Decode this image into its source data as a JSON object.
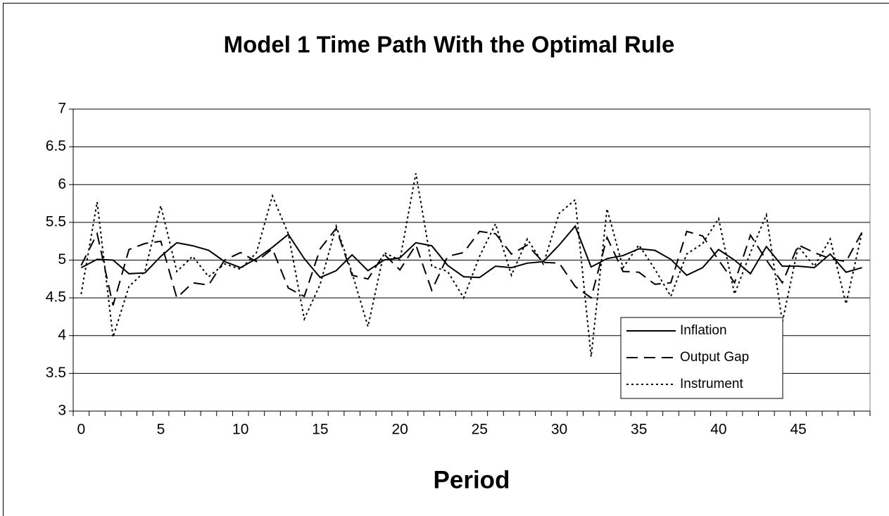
{
  "chart_data": {
    "type": "line",
    "title": "Model 1 Time Path With the Optimal Rule",
    "x_label": "Period",
    "categories": [
      0,
      null,
      null,
      null,
      null,
      5,
      null,
      null,
      null,
      null,
      10,
      null,
      null,
      null,
      null,
      15,
      null,
      null,
      null,
      null,
      20,
      null,
      null,
      null,
      null,
      25,
      null,
      null,
      null,
      null,
      30,
      null,
      null,
      null,
      null,
      35,
      null,
      null,
      null,
      null,
      40,
      null,
      null,
      null,
      null,
      45,
      null,
      null,
      null,
      null
    ],
    "ylim": [
      3,
      7
    ],
    "yticks": [
      3,
      3.5,
      4,
      4.5,
      5,
      5.5,
      6,
      6.5,
      7
    ],
    "grid": true,
    "legend": "lower right",
    "series": [
      {
        "name": "Inflation",
        "color": "#000000",
        "style": "solid",
        "values": [
          4.9,
          5.01,
          5.0,
          4.82,
          4.83,
          5.05,
          5.23,
          5.19,
          5.13,
          4.98,
          4.9,
          5.02,
          5.17,
          5.34,
          5.02,
          4.77,
          4.86,
          5.07,
          4.86,
          5.0,
          5.03,
          5.23,
          5.19,
          4.93,
          4.78,
          4.77,
          4.92,
          4.9,
          4.96,
          4.98,
          5.2,
          5.45,
          4.91,
          5.02,
          5.06,
          5.15,
          5.13,
          5.01,
          4.8,
          4.9,
          5.14,
          5.0,
          4.82,
          5.18,
          4.92,
          4.92,
          4.9,
          5.08,
          4.84,
          4.9
        ]
      },
      {
        "name": "Output Gap",
        "color": "#000000",
        "style": "dashed",
        "values": [
          4.93,
          5.35,
          4.4,
          5.14,
          5.22,
          5.25,
          4.5,
          4.7,
          4.67,
          5.0,
          5.1,
          4.98,
          5.15,
          4.63,
          4.52,
          5.15,
          5.42,
          4.8,
          4.75,
          5.08,
          4.87,
          5.2,
          4.6,
          5.05,
          5.1,
          5.38,
          5.35,
          5.08,
          5.2,
          4.97,
          4.96,
          4.65,
          4.5,
          5.3,
          4.85,
          4.84,
          4.68,
          4.7,
          5.38,
          5.32,
          5.0,
          4.7,
          5.33,
          5.0,
          4.7,
          5.2,
          5.1,
          5.02,
          4.98,
          5.37
        ]
      },
      {
        "name": "Instrument",
        "color": "#000000",
        "style": "dotted",
        "values": [
          4.55,
          5.77,
          3.98,
          4.65,
          4.85,
          5.72,
          4.85,
          5.05,
          4.78,
          4.95,
          4.88,
          5.1,
          5.85,
          5.35,
          4.22,
          4.68,
          5.45,
          4.83,
          4.12,
          5.1,
          5.0,
          6.15,
          4.92,
          4.85,
          4.5,
          5.05,
          5.48,
          4.8,
          5.28,
          4.95,
          5.62,
          5.8,
          3.72,
          5.68,
          4.9,
          5.2,
          4.88,
          4.52,
          5.08,
          5.22,
          5.55,
          4.55,
          5.1,
          5.6,
          4.18,
          5.18,
          4.92,
          5.28,
          4.42,
          5.37
        ]
      }
    ]
  }
}
